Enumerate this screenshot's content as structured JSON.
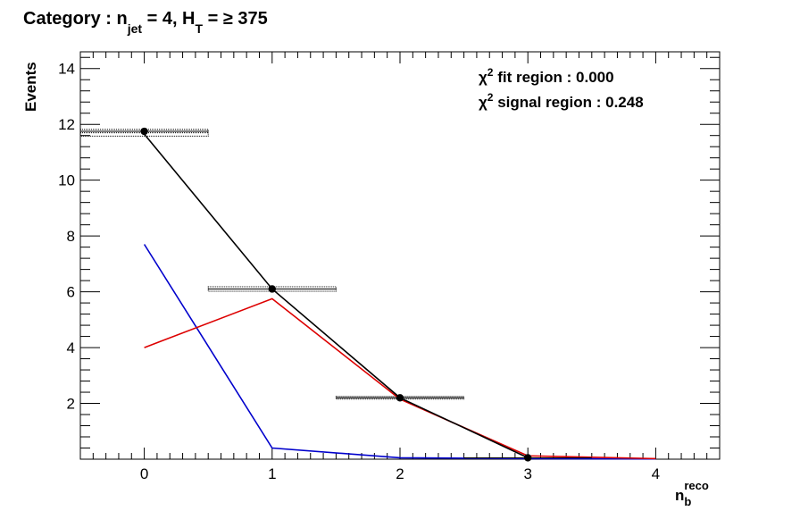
{
  "chart_data": {
    "type": "line",
    "title": {
      "prefix": "Category : n",
      "sub1": "jet",
      "mid": " = 4,    H",
      "sub2": "T",
      "suffix": " = ≥ 375"
    },
    "ylabel": "Events",
    "xlabel": {
      "main": "n",
      "sub": "b",
      "sup": "reco"
    },
    "xlim": [
      -0.5,
      4.5
    ],
    "ylim": [
      0,
      14.6
    ],
    "x_ticks": [
      "0",
      "1",
      "2",
      "3",
      "4"
    ],
    "y_ticks": [
      "2",
      "4",
      "6",
      "8",
      "10",
      "12",
      "14"
    ],
    "annotations": [
      {
        "symbol": "χ",
        "sup": "2",
        "text": " fit region : 0.000"
      },
      {
        "symbol": "χ",
        "sup": "2",
        "text": " signal region : 0.248"
      }
    ],
    "series": [
      {
        "color": "#0000cc",
        "x": [
          0,
          1,
          2,
          3,
          4
        ],
        "y": [
          7.7,
          0.4,
          0.05,
          0.02,
          0.01
        ]
      },
      {
        "color": "#dd0000",
        "x": [
          0,
          1,
          2,
          3,
          4
        ],
        "y": [
          4.0,
          5.75,
          2.15,
          0.12,
          0.02
        ]
      },
      {
        "color": "#000000",
        "x": [
          0,
          1,
          2,
          3
        ],
        "y": [
          11.65,
          6.1,
          2.2,
          0.05
        ]
      }
    ],
    "data_points": {
      "x": [
        0,
        1,
        2,
        3
      ],
      "y": [
        11.75,
        6.1,
        2.2,
        0.05
      ],
      "xerr": 0.5
    },
    "uncertainty_bands": [
      {
        "x": [
          -0.5,
          0.5
        ],
        "y": 11.7,
        "err": 0.12
      },
      {
        "x": [
          0.5,
          1.5
        ],
        "y": 6.1,
        "err": 0.08
      },
      {
        "x": [
          1.5,
          2.5
        ],
        "y": 2.2,
        "err": 0.03
      }
    ]
  }
}
